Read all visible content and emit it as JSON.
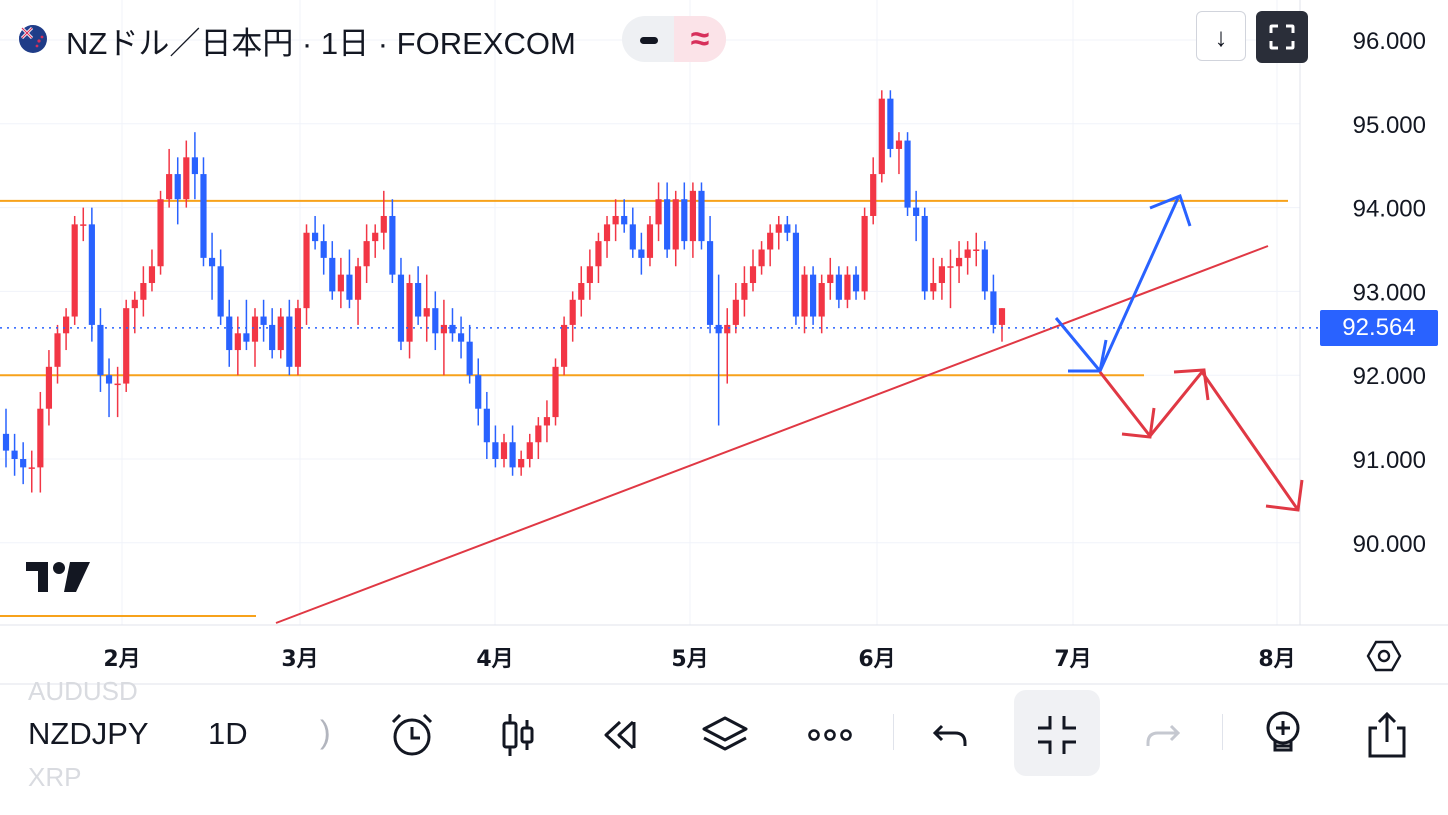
{
  "header": {
    "title": "NZドル／日本円 · 1日 · FOREXCOM",
    "approx_symbol": "≈",
    "down_symbol": "↓"
  },
  "price_tag": "92.564",
  "toolbar": {
    "symbol": "NZDJPY",
    "interval": "1D",
    "ghost_above": "AUDUSD",
    "ghost_below": "XRP",
    "paren": ")"
  },
  "colors": {
    "up": "#f23645",
    "down": "#2962ff",
    "level": "#f7a21b",
    "trend": "#e03844",
    "arrow_blue": "#2962ff",
    "arrow_red": "#e03844",
    "last_price": "#2962ff"
  },
  "chart_data": {
    "type": "candlestick",
    "y_ticks": [
      "96.000",
      "95.000",
      "94.000",
      "93.000",
      "92.000",
      "91.000",
      "90.000"
    ],
    "x_ticks": [
      "2月",
      "3月",
      "4月",
      "5月",
      "6月",
      "7月",
      "8月"
    ],
    "ylim": [
      89.1,
      96.4
    ],
    "last_price": 92.564,
    "horizontal_levels": [
      94.08,
      92.0,
      89.08
    ],
    "trendline": [
      [
        0.0,
        89.04
      ],
      [
        0.0,
        93.55
      ]
    ],
    "ohlc": [
      [
        91.3,
        91.6,
        90.9,
        91.1
      ],
      [
        91.1,
        91.3,
        90.8,
        91.0
      ],
      [
        91.0,
        91.2,
        90.7,
        90.9
      ],
      [
        90.9,
        91.1,
        90.6,
        90.9
      ],
      [
        90.9,
        91.8,
        90.6,
        91.6
      ],
      [
        91.6,
        92.3,
        91.4,
        92.1
      ],
      [
        92.1,
        92.6,
        91.9,
        92.5
      ],
      [
        92.5,
        92.8,
        92.3,
        92.7
      ],
      [
        92.7,
        93.9,
        92.6,
        93.8
      ],
      [
        93.8,
        94.0,
        93.6,
        93.8
      ],
      [
        93.8,
        94.0,
        92.4,
        92.6
      ],
      [
        92.6,
        92.8,
        91.8,
        92.0
      ],
      [
        92.0,
        92.2,
        91.5,
        91.9
      ],
      [
        91.9,
        92.1,
        91.5,
        91.9
      ],
      [
        91.9,
        92.9,
        91.8,
        92.8
      ],
      [
        92.8,
        93.0,
        92.5,
        92.9
      ],
      [
        92.9,
        93.3,
        92.7,
        93.1
      ],
      [
        93.1,
        93.5,
        93.0,
        93.3
      ],
      [
        93.3,
        94.2,
        93.2,
        94.1
      ],
      [
        94.1,
        94.7,
        94.0,
        94.4
      ],
      [
        94.4,
        94.6,
        93.8,
        94.1
      ],
      [
        94.1,
        94.8,
        94.0,
        94.6
      ],
      [
        94.6,
        94.9,
        94.1,
        94.4
      ],
      [
        94.4,
        94.6,
        93.3,
        93.4
      ],
      [
        93.4,
        93.7,
        92.9,
        93.3
      ],
      [
        93.3,
        93.5,
        92.6,
        92.7
      ],
      [
        92.7,
        92.9,
        92.1,
        92.3
      ],
      [
        92.3,
        92.7,
        92.0,
        92.5
      ],
      [
        92.5,
        92.9,
        92.3,
        92.4
      ],
      [
        92.4,
        92.8,
        92.1,
        92.7
      ],
      [
        92.7,
        92.9,
        92.4,
        92.6
      ],
      [
        92.6,
        92.8,
        92.2,
        92.3
      ],
      [
        92.3,
        92.8,
        92.2,
        92.7
      ],
      [
        92.7,
        92.9,
        92.0,
        92.1
      ],
      [
        92.1,
        92.9,
        92.0,
        92.8
      ],
      [
        92.8,
        93.8,
        92.6,
        93.7
      ],
      [
        93.7,
        93.9,
        93.5,
        93.6
      ],
      [
        93.6,
        93.8,
        93.2,
        93.4
      ],
      [
        93.4,
        93.6,
        92.9,
        93.0
      ],
      [
        93.0,
        93.4,
        92.8,
        93.2
      ],
      [
        93.2,
        93.5,
        92.8,
        92.9
      ],
      [
        92.9,
        93.4,
        92.6,
        93.3
      ],
      [
        93.3,
        93.8,
        93.1,
        93.6
      ],
      [
        93.6,
        93.8,
        93.4,
        93.7
      ],
      [
        93.7,
        94.2,
        93.5,
        93.9
      ],
      [
        93.9,
        94.1,
        93.1,
        93.2
      ],
      [
        93.2,
        93.4,
        92.3,
        92.4
      ],
      [
        92.4,
        93.2,
        92.2,
        93.1
      ],
      [
        93.1,
        93.3,
        92.6,
        92.7
      ],
      [
        92.7,
        93.2,
        92.4,
        92.8
      ],
      [
        92.8,
        93.0,
        92.3,
        92.5
      ],
      [
        92.5,
        92.9,
        92.0,
        92.6
      ],
      [
        92.6,
        92.8,
        92.4,
        92.5
      ],
      [
        92.5,
        92.7,
        92.2,
        92.4
      ],
      [
        92.4,
        92.6,
        91.9,
        92.0
      ],
      [
        92.0,
        92.2,
        91.4,
        91.6
      ],
      [
        91.6,
        91.8,
        91.0,
        91.2
      ],
      [
        91.2,
        91.4,
        90.9,
        91.0
      ],
      [
        91.0,
        91.3,
        90.9,
        91.2
      ],
      [
        91.2,
        91.4,
        90.8,
        90.9
      ],
      [
        90.9,
        91.1,
        90.8,
        91.0
      ],
      [
        91.0,
        91.3,
        90.9,
        91.2
      ],
      [
        91.2,
        91.5,
        91.0,
        91.4
      ],
      [
        91.4,
        91.7,
        91.2,
        91.5
      ],
      [
        91.5,
        92.2,
        91.4,
        92.1
      ],
      [
        92.1,
        92.7,
        92.0,
        92.6
      ],
      [
        92.6,
        93.0,
        92.4,
        92.9
      ],
      [
        92.9,
        93.3,
        92.7,
        93.1
      ],
      [
        93.1,
        93.5,
        92.9,
        93.3
      ],
      [
        93.3,
        93.7,
        93.1,
        93.6
      ],
      [
        93.6,
        93.9,
        93.4,
        93.8
      ],
      [
        93.8,
        94.1,
        93.6,
        93.9
      ],
      [
        93.9,
        94.1,
        93.7,
        93.8
      ],
      [
        93.8,
        94.0,
        93.4,
        93.5
      ],
      [
        93.5,
        93.7,
        93.2,
        93.4
      ],
      [
        93.4,
        93.9,
        93.3,
        93.8
      ],
      [
        93.8,
        94.3,
        93.6,
        94.1
      ],
      [
        94.1,
        94.3,
        93.4,
        93.5
      ],
      [
        93.5,
        94.2,
        93.3,
        94.1
      ],
      [
        94.1,
        94.3,
        93.5,
        93.6
      ],
      [
        93.6,
        94.3,
        93.4,
        94.2
      ],
      [
        94.2,
        94.3,
        93.5,
        93.6
      ],
      [
        93.6,
        93.9,
        92.5,
        92.6
      ],
      [
        92.6,
        93.2,
        91.4,
        92.5
      ],
      [
        92.5,
        92.8,
        91.9,
        92.6
      ],
      [
        92.6,
        93.1,
        92.5,
        92.9
      ],
      [
        92.9,
        93.3,
        92.7,
        93.1
      ],
      [
        93.1,
        93.5,
        93.0,
        93.3
      ],
      [
        93.3,
        93.6,
        93.2,
        93.5
      ],
      [
        93.5,
        93.8,
        93.3,
        93.7
      ],
      [
        93.7,
        93.9,
        93.5,
        93.8
      ],
      [
        93.8,
        93.9,
        93.6,
        93.7
      ],
      [
        93.7,
        93.8,
        92.6,
        92.7
      ],
      [
        92.7,
        93.3,
        92.5,
        93.2
      ],
      [
        93.2,
        93.3,
        92.6,
        92.7
      ],
      [
        92.7,
        93.2,
        92.5,
        93.1
      ],
      [
        93.1,
        93.4,
        92.9,
        93.2
      ],
      [
        93.2,
        93.3,
        92.8,
        92.9
      ],
      [
        92.9,
        93.3,
        92.8,
        93.2
      ],
      [
        93.2,
        93.3,
        92.9,
        93.0
      ],
      [
        93.0,
        94.0,
        92.9,
        93.9
      ],
      [
        93.9,
        94.6,
        93.8,
        94.4
      ],
      [
        94.4,
        95.4,
        94.3,
        95.3
      ],
      [
        95.3,
        95.4,
        94.6,
        94.7
      ],
      [
        94.7,
        94.9,
        94.4,
        94.8
      ],
      [
        94.8,
        94.9,
        93.9,
        94.0
      ],
      [
        94.0,
        94.2,
        93.6,
        93.9
      ],
      [
        93.9,
        94.0,
        92.9,
        93.0
      ],
      [
        93.0,
        93.4,
        92.9,
        93.1
      ],
      [
        93.1,
        93.4,
        92.9,
        93.3
      ],
      [
        93.3,
        93.5,
        92.8,
        93.3
      ],
      [
        93.3,
        93.6,
        93.1,
        93.4
      ],
      [
        93.4,
        93.6,
        93.2,
        93.5
      ],
      [
        93.5,
        93.7,
        93.3,
        93.5
      ],
      [
        93.5,
        93.6,
        92.9,
        93.0
      ],
      [
        93.0,
        93.2,
        92.5,
        92.6
      ],
      [
        92.6,
        92.8,
        92.4,
        92.8
      ]
    ]
  }
}
